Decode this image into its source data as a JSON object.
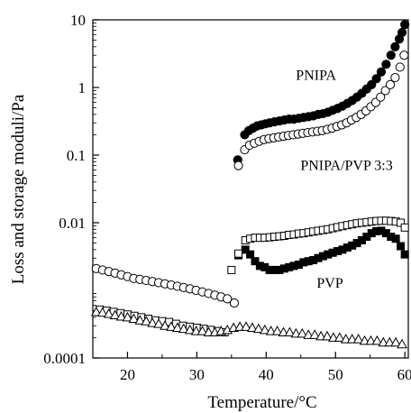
{
  "chart_data": {
    "type": "scatter",
    "xlabel": "Temperature/°C",
    "ylabel": "Loss and storage moduli/Pa",
    "xlim": [
      15,
      60.5
    ],
    "ylim": [
      0.0001,
      10
    ],
    "yscale": "log",
    "xticks": [
      20,
      30,
      40,
      50,
      60
    ],
    "xtick_labels": [
      "20",
      "30",
      "40",
      "50",
      "60"
    ],
    "yticks": [
      0.0001,
      0.01,
      0.1,
      1,
      10
    ],
    "ytick_labels": [
      "0.0001",
      "0.01",
      "0.1",
      "1",
      "10"
    ],
    "annotations": [
      {
        "text": "PNIPA",
        "x": 47.2,
        "y": 1.3
      },
      {
        "text": "PNIPA/PVP 3:3",
        "x": 51.6,
        "y": 0.06
      },
      {
        "text": "PVP",
        "x": 49.2,
        "y": 0.0011
      }
    ],
    "series": [
      {
        "marker": "circle-filled",
        "x": [
          35.9,
          36.9,
          37.5,
          38.1,
          38.7,
          39.3,
          39.9,
          40.5,
          41.2,
          41.9,
          42.6,
          43.3,
          44.0,
          44.7,
          45.4,
          46.1,
          46.8,
          47.5,
          48.2,
          48.9,
          49.6,
          50.3,
          51.0,
          51.7,
          52.4,
          53.1,
          53.8,
          54.5,
          55.2,
          55.9,
          56.6,
          57.3,
          58.0,
          58.6,
          59.2,
          59.6,
          60.0
        ],
        "y": [
          0.085,
          0.2,
          0.23,
          0.25,
          0.27,
          0.28,
          0.29,
          0.3,
          0.31,
          0.32,
          0.33,
          0.34,
          0.34,
          0.35,
          0.36,
          0.37,
          0.38,
          0.4,
          0.41,
          0.43,
          0.46,
          0.49,
          0.53,
          0.58,
          0.64,
          0.72,
          0.82,
          0.95,
          1.1,
          1.35,
          1.7,
          2.2,
          3.0,
          4.0,
          5.2,
          6.5,
          8.5
        ]
      },
      {
        "marker": "circle-open",
        "x": [
          35.4,
          36.0,
          36.9,
          37.6,
          38.3,
          39.0,
          39.7,
          40.4,
          41.1,
          41.8,
          42.5,
          43.2,
          43.9,
          44.6,
          45.3,
          46.0,
          46.7,
          47.4,
          48.1,
          48.8,
          49.5,
          50.2,
          50.9,
          51.6,
          52.3,
          53.0,
          53.7,
          54.4,
          55.1,
          55.8,
          56.5,
          57.2,
          57.9,
          58.6,
          59.3,
          59.9,
          15.5,
          16.4,
          17.3,
          18.2,
          19.1,
          20.0,
          20.9,
          21.8,
          22.7,
          23.6,
          24.5,
          25.4,
          26.3,
          27.2,
          28.1,
          29.0,
          29.9,
          30.8,
          31.7,
          32.6,
          33.5,
          34.4
        ],
        "y": [
          0.00065,
          0.07,
          0.12,
          0.14,
          0.15,
          0.16,
          0.17,
          0.175,
          0.18,
          0.185,
          0.19,
          0.195,
          0.2,
          0.205,
          0.21,
          0.215,
          0.22,
          0.225,
          0.23,
          0.24,
          0.25,
          0.265,
          0.28,
          0.3,
          0.33,
          0.36,
          0.4,
          0.45,
          0.52,
          0.6,
          0.72,
          0.9,
          1.1,
          1.4,
          2.0,
          3.0,
          0.0021,
          0.002,
          0.0019,
          0.0018,
          0.0017,
          0.0016,
          0.0015,
          0.00145,
          0.0014,
          0.00135,
          0.0013,
          0.00125,
          0.0012,
          0.00115,
          0.0011,
          0.00105,
          0.001,
          0.00095,
          0.0009,
          0.00085,
          0.0008,
          0.00075
        ]
      },
      {
        "marker": "square-filled",
        "x": [
          36.0,
          37.0,
          37.7,
          38.4,
          39.1,
          39.8,
          40.5,
          41.2,
          41.9,
          42.6,
          43.3,
          44.0,
          44.7,
          45.4,
          46.1,
          46.8,
          47.5,
          48.2,
          48.9,
          49.6,
          50.3,
          51.0,
          51.7,
          52.4,
          53.1,
          53.8,
          54.5,
          55.2,
          55.9,
          56.6,
          57.3,
          58.0,
          58.7,
          59.4,
          60.0
        ],
        "y": [
          0.0033,
          0.004,
          0.0034,
          0.0027,
          0.0023,
          0.0022,
          0.002,
          0.002,
          0.002,
          0.0021,
          0.0022,
          0.0023,
          0.0024,
          0.0026,
          0.0027,
          0.0028,
          0.003,
          0.0032,
          0.0034,
          0.0036,
          0.0038,
          0.004,
          0.0043,
          0.0046,
          0.005,
          0.0055,
          0.0062,
          0.007,
          0.0075,
          0.0076,
          0.007,
          0.0062,
          0.0058,
          0.0045,
          0.0034
        ]
      },
      {
        "marker": "square-open",
        "x": [
          35.0,
          36.0,
          37.0,
          37.7,
          38.4,
          39.1,
          39.8,
          40.5,
          41.2,
          41.9,
          42.6,
          43.3,
          44.0,
          44.7,
          45.4,
          46.1,
          46.8,
          47.5,
          48.2,
          48.9,
          49.6,
          50.3,
          51.0,
          51.7,
          52.4,
          53.1,
          53.8,
          54.5,
          55.2,
          55.9,
          56.6,
          57.3,
          58.0,
          58.7,
          59.4,
          60.0,
          16.0,
          17.0,
          18.0,
          19.0,
          20.0,
          21.0,
          22.0,
          23.0,
          24.0,
          25.0,
          26.0,
          27.0,
          28.0,
          29.0,
          30.0,
          31.0,
          32.0,
          33.0,
          34.0
        ],
        "y": [
          0.002,
          0.0035,
          0.0055,
          0.0058,
          0.006,
          0.006,
          0.006,
          0.0061,
          0.0062,
          0.0063,
          0.0064,
          0.0066,
          0.0067,
          0.0069,
          0.007,
          0.0072,
          0.0074,
          0.0076,
          0.0078,
          0.008,
          0.0083,
          0.0086,
          0.0089,
          0.0092,
          0.0095,
          0.0098,
          0.01,
          0.0102,
          0.0104,
          0.0106,
          0.0107,
          0.0107,
          0.0106,
          0.0104,
          0.01,
          0.0085,
          0.00052,
          0.0005,
          0.00048,
          0.00046,
          0.00044,
          0.00042,
          0.0004,
          0.00038,
          0.00036,
          0.00035,
          0.00034,
          0.00032,
          0.0003,
          0.00029,
          0.00028,
          0.00027,
          0.00026,
          0.00025,
          0.00024
        ]
      },
      {
        "marker": "triangle-open",
        "x": [
          15.5,
          16.4,
          17.3,
          18.2,
          19.1,
          20.0,
          20.9,
          21.8,
          22.7,
          23.6,
          24.5,
          25.4,
          26.3,
          27.2,
          28.1,
          29.0,
          29.9,
          30.8,
          31.7,
          32.6,
          33.5,
          34.4,
          35.3,
          36.2,
          37.1,
          38.0,
          38.9,
          39.8,
          40.7,
          41.6,
          42.5,
          43.4,
          44.3,
          45.2,
          46.1,
          47.0,
          47.9,
          48.8,
          49.7,
          50.6,
          51.5,
          52.4,
          53.3,
          54.2,
          55.1,
          56.0,
          56.9,
          57.8,
          58.7,
          59.6
        ],
        "y": [
          0.00048,
          0.00047,
          0.00045,
          0.00043,
          0.00041,
          0.0004,
          0.00038,
          0.00036,
          0.00035,
          0.00033,
          0.00032,
          0.0003,
          0.00029,
          0.00028,
          0.00027,
          0.00026,
          0.00025,
          0.00025,
          0.00024,
          0.00024,
          0.00025,
          0.00026,
          0.00028,
          0.00029,
          0.00029,
          0.00028,
          0.00027,
          0.00026,
          0.00025,
          0.00025,
          0.00024,
          0.00024,
          0.00023,
          0.00023,
          0.00022,
          0.00022,
          0.00021,
          0.00021,
          0.0002,
          0.0002,
          0.00019,
          0.00019,
          0.00019,
          0.00018,
          0.00018,
          0.00018,
          0.00017,
          0.00017,
          0.00017,
          0.00016
        ]
      }
    ]
  }
}
